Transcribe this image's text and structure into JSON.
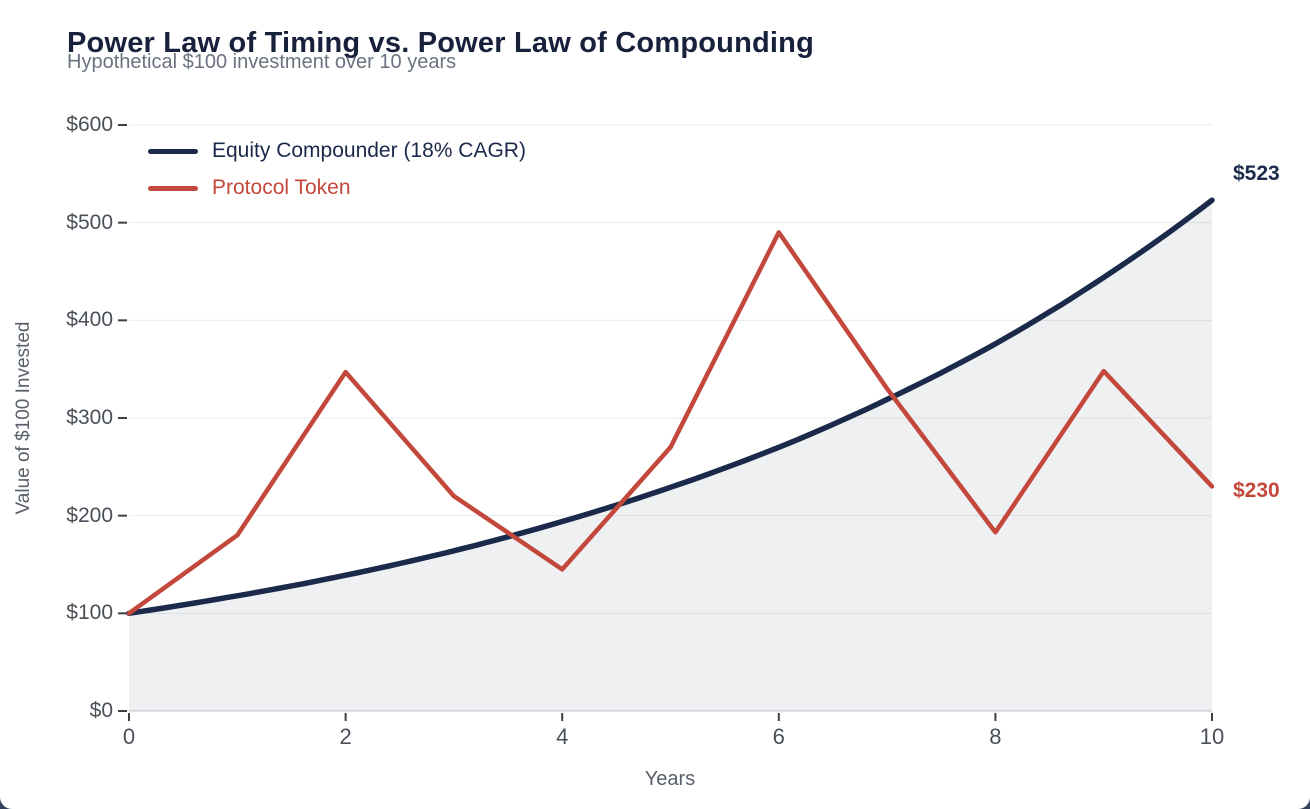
{
  "chart_data": {
    "type": "line",
    "title": "Power Law of Timing vs. Power Law of Compounding",
    "subtitle": "Hypothetical $100 investment over 10 years",
    "xlabel": "Years",
    "ylabel": "Value of $100 Invested",
    "x": [
      0,
      1,
      2,
      3,
      4,
      5,
      6,
      7,
      8,
      9,
      10
    ],
    "series": [
      {
        "name": "Equity Compounder (18% CAGR)",
        "color": "#1b2a4a",
        "values": [
          100,
          118,
          139,
          164,
          194,
          229,
          270,
          319,
          376,
          444,
          523
        ],
        "curve": "smooth-exponential",
        "area_fill": true,
        "end_label": "$523"
      },
      {
        "name": "Protocol Token",
        "color": "#c3483b",
        "values": [
          100,
          180,
          347,
          220,
          145,
          270,
          490,
          330,
          183,
          348,
          230
        ],
        "curve": "linear",
        "area_fill": false,
        "end_label": "$230"
      }
    ],
    "xlim": [
      0,
      10
    ],
    "ylim": [
      0,
      600
    ],
    "xticks": [
      0,
      2,
      4,
      6,
      8,
      10
    ],
    "xtick_labels": [
      "0",
      "2",
      "4",
      "6",
      "8",
      "10"
    ],
    "yticks": [
      0,
      100,
      200,
      300,
      400,
      500,
      600
    ],
    "ytick_labels": [
      "$0",
      "$100",
      "$200",
      "$300",
      "$400",
      "$500",
      "$600"
    ],
    "grid": true,
    "legend_position": "top-left"
  }
}
